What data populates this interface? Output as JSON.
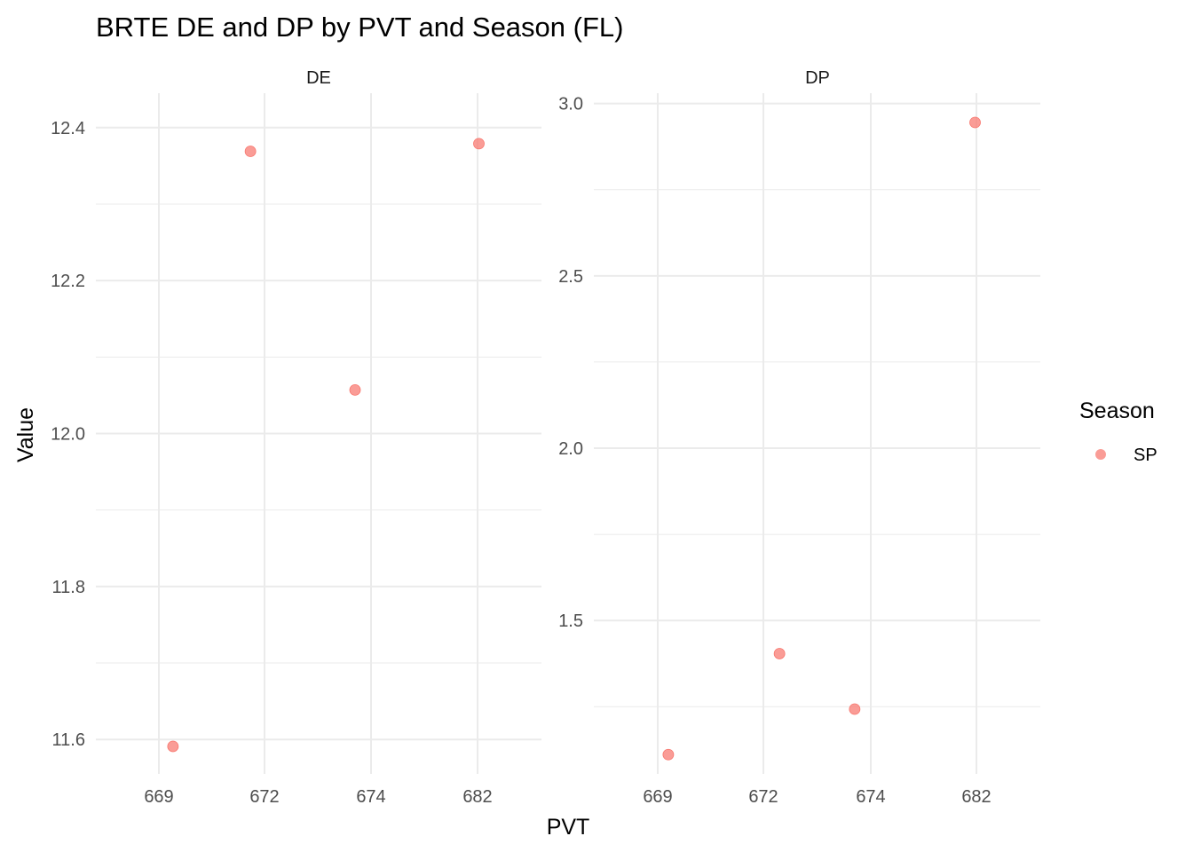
{
  "chart_data": {
    "type": "scatter",
    "title": "BRTE DE and DP by PVT and Season (FL)",
    "xlabel": "PVT",
    "ylabel": "Value",
    "x_axis_type": "discrete",
    "grid": true,
    "legend": {
      "title": "Season",
      "position": "right",
      "entries": [
        {
          "label": "SP",
          "color": "#f8766d"
        }
      ]
    },
    "point_color": "#f8766d",
    "panels": [
      {
        "strip": "DE",
        "x_categories": [
          "669",
          "672",
          "674",
          "682"
        ],
        "y_ticks": [
          "11.6",
          "11.8",
          "12.0",
          "12.2",
          "12.4"
        ],
        "ylim": [
          11.555,
          12.445
        ],
        "points": [
          {
            "x": 669.4,
            "y": 11.591
          },
          {
            "x": 671.6,
            "y": 12.369
          },
          {
            "x": 673.7,
            "y": 12.057
          },
          {
            "x": 682.1,
            "y": 12.379
          }
        ]
      },
      {
        "strip": "DP",
        "x_categories": [
          "669",
          "672",
          "674",
          "682"
        ],
        "y_ticks": [
          "1.5",
          "2.0",
          "2.5",
          "3.0"
        ],
        "ylim": [
          1.055,
          3.03
        ],
        "points": [
          {
            "x": 669.3,
            "y": 1.111
          },
          {
            "x": 672.3,
            "y": 1.404
          },
          {
            "x": 673.7,
            "y": 1.243
          },
          {
            "x": 681.9,
            "y": 2.945
          }
        ]
      }
    ]
  }
}
